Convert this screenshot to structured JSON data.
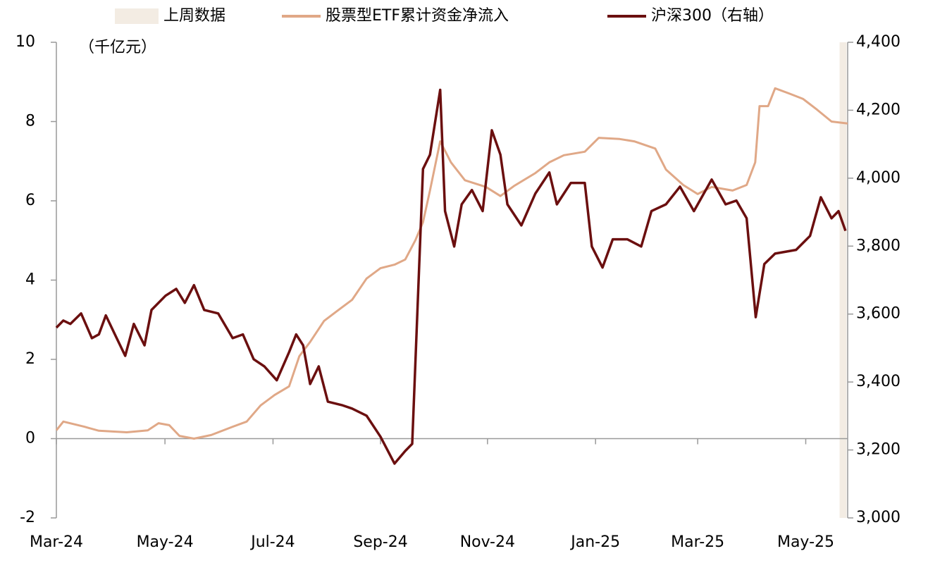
{
  "chart_data": {
    "type": "line",
    "annotation": "（千亿元）",
    "highlight": {
      "name": "上周数据",
      "color": "#f3ece3",
      "xrange": [
        14.57,
        14.7
      ]
    },
    "xlim": [
      0,
      14.72
    ],
    "xticks": [
      {
        "value": 0,
        "label": "Mar-24"
      },
      {
        "value": 2.02,
        "label": "May-24"
      },
      {
        "value": 4.03,
        "label": "Jul-24"
      },
      {
        "value": 6.03,
        "label": "Sep-24"
      },
      {
        "value": 8.02,
        "label": "Nov-24"
      },
      {
        "value": 10.03,
        "label": "Jan-25"
      },
      {
        "value": 11.93,
        "label": "Mar-25"
      },
      {
        "value": 13.94,
        "label": "May-25"
      }
    ],
    "ylim": [
      -2,
      10
    ],
    "yticks": [
      -2,
      0,
      2,
      4,
      6,
      8,
      10
    ],
    "y2lim": [
      3000,
      4400
    ],
    "y2ticks": [
      {
        "value": 3000,
        "label": "3,000"
      },
      {
        "value": 3200,
        "label": "3,200"
      },
      {
        "value": 3400,
        "label": "3,400"
      },
      {
        "value": 3600,
        "label": "3,600"
      },
      {
        "value": 3800,
        "label": "3,800"
      },
      {
        "value": 4000,
        "label": "4,000"
      },
      {
        "value": 4200,
        "label": "4,200"
      },
      {
        "value": 4400,
        "label": "4,400"
      }
    ],
    "series": [
      {
        "name": "股票型ETF累计资金净流入",
        "color": "#e0a887",
        "x": [
          0,
          0.13,
          0.52,
          0.79,
          1.31,
          1.7,
          1.9,
          2.1,
          2.29,
          2.56,
          2.88,
          3.28,
          3.54,
          3.8,
          4.06,
          4.33,
          4.52,
          4.72,
          4.98,
          5.24,
          5.5,
          5.77,
          6.03,
          6.29,
          6.49,
          6.68,
          6.82,
          6.95,
          7.14,
          7.34,
          7.6,
          7.99,
          8.26,
          8.52,
          8.91,
          9.17,
          9.44,
          9.83,
          10.09,
          10.48,
          10.75,
          11.14,
          11.34,
          11.66,
          11.93,
          12.19,
          12.58,
          12.84,
          13.0,
          13.08,
          13.24,
          13.37,
          13.63,
          13.89,
          14.15,
          14.42,
          14.72
        ],
        "values": [
          0.21,
          0.43,
          0.3,
          0.2,
          0.16,
          0.21,
          0.39,
          0.34,
          0.07,
          0.0,
          0.09,
          0.3,
          0.43,
          0.84,
          1.1,
          1.32,
          2.08,
          2.44,
          2.97,
          3.24,
          3.5,
          4.04,
          4.3,
          4.39,
          4.52,
          5.01,
          5.46,
          6.26,
          7.5,
          6.97,
          6.52,
          6.35,
          6.12,
          6.38,
          6.7,
          6.97,
          7.15,
          7.24,
          7.59,
          7.56,
          7.5,
          7.32,
          6.79,
          6.4,
          6.17,
          6.35,
          6.26,
          6.4,
          6.97,
          8.39,
          8.39,
          8.84,
          8.71,
          8.57,
          8.3,
          8.0,
          7.95
        ]
      },
      {
        "name": "沪深300（右轴）",
        "color": "#6b0f0f",
        "axis": "y2",
        "x": [
          0,
          0.13,
          0.26,
          0.46,
          0.66,
          0.79,
          0.92,
          1.11,
          1.28,
          1.44,
          1.64,
          1.77,
          2.03,
          2.23,
          2.39,
          2.56,
          2.75,
          3.01,
          3.28,
          3.47,
          3.67,
          3.87,
          4.1,
          4.33,
          4.46,
          4.59,
          4.72,
          4.88,
          5.05,
          5.31,
          5.5,
          5.77,
          6.03,
          6.29,
          6.49,
          6.62,
          6.82,
          6.95,
          7.14,
          7.23,
          7.4,
          7.54,
          7.73,
          7.93,
          8.1,
          8.26,
          8.39,
          8.65,
          8.91,
          9.17,
          9.31,
          9.57,
          9.83,
          9.96,
          10.16,
          10.35,
          10.62,
          10.88,
          11.07,
          11.34,
          11.6,
          11.86,
          12.19,
          12.45,
          12.65,
          12.84,
          13.01,
          13.17,
          13.37,
          13.76,
          14.02,
          14.22,
          14.42,
          14.55,
          14.68
        ],
        "values": [
          3560,
          3581,
          3571,
          3602,
          3529,
          3540,
          3596,
          3533,
          3477,
          3571,
          3508,
          3612,
          3654,
          3674,
          3633,
          3685,
          3612,
          3602,
          3529,
          3540,
          3467,
          3446,
          3405,
          3488,
          3540,
          3508,
          3394,
          3446,
          3342,
          3332,
          3322,
          3301,
          3239,
          3160,
          3197,
          3218,
          4027,
          4069,
          4260,
          3903,
          3799,
          3923,
          3965,
          3903,
          4141,
          4069,
          3923,
          3861,
          3955,
          4017,
          3923,
          3986,
          3986,
          3799,
          3737,
          3820,
          3820,
          3799,
          3903,
          3923,
          3975,
          3903,
          3996,
          3923,
          3934,
          3882,
          3591,
          3747,
          3778,
          3789,
          3830,
          3944,
          3882,
          3903,
          3845
        ]
      }
    ]
  }
}
